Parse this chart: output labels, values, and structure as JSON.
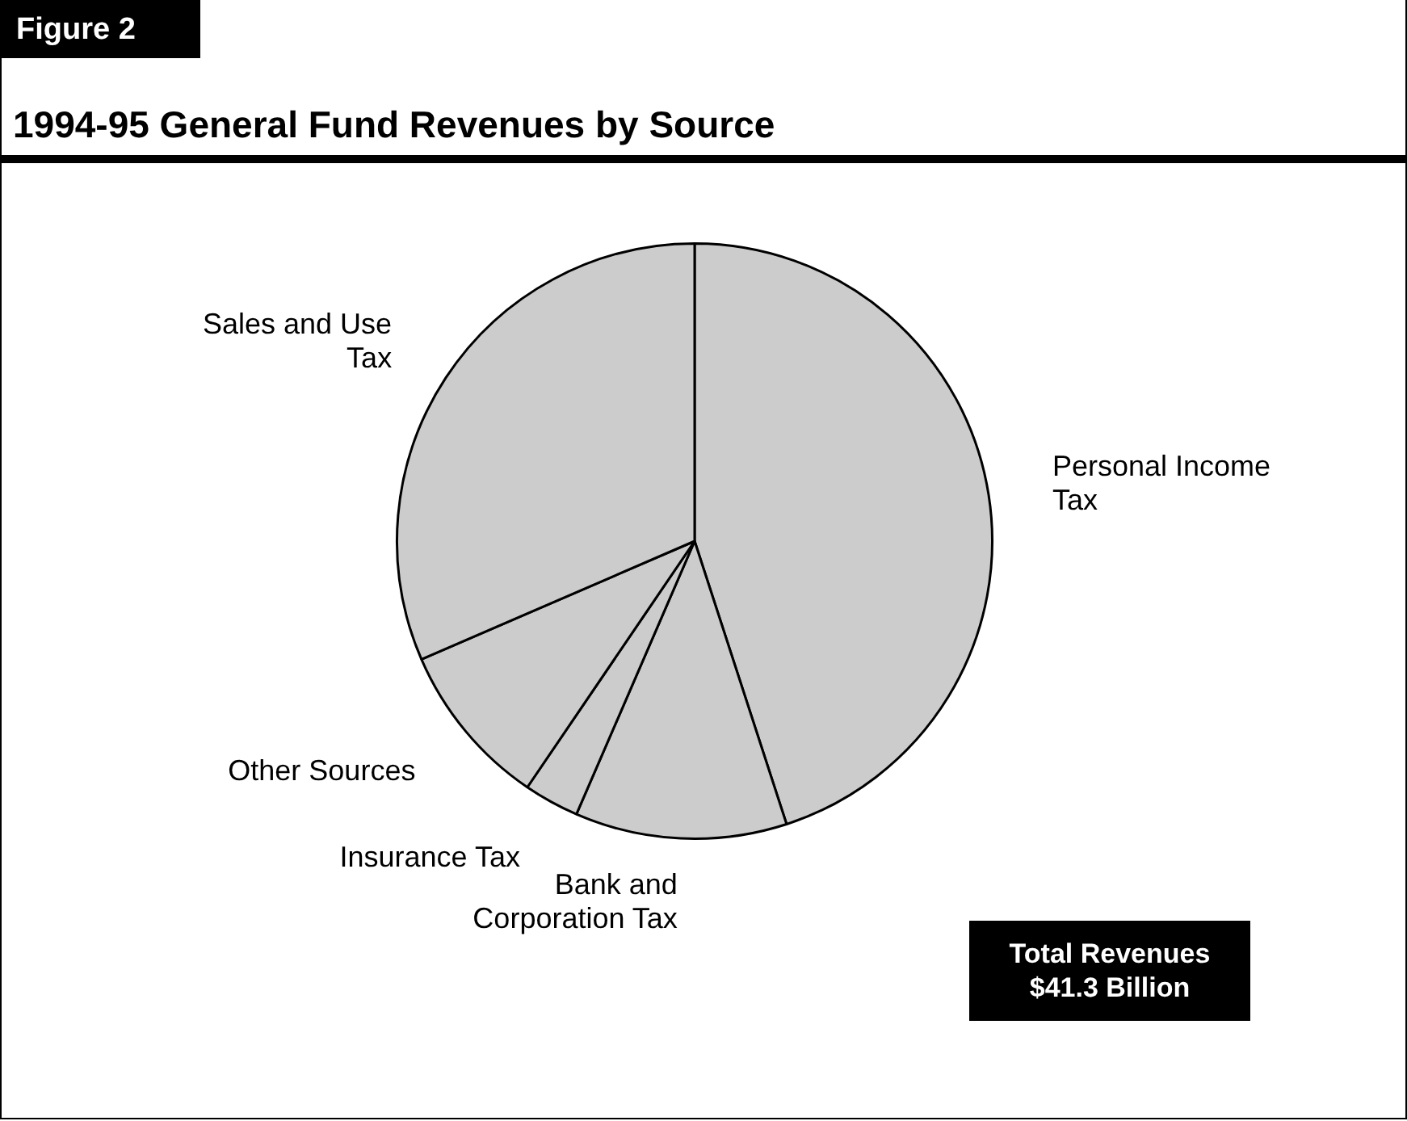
{
  "chart_data": {
    "type": "pie",
    "title": "1994-95 General Fund Revenues by Source",
    "subtitle": "Figure 2",
    "categories": [
      "Personal Income Tax",
      "Bank and Corporation Tax",
      "Insurance Tax",
      "Other Sources",
      "Sales and Use Tax"
    ],
    "values": [
      45,
      11.5,
      3,
      9,
      31.5
    ],
    "colors": [
      "#cccccc",
      "#cccccc",
      "#cccccc",
      "#cccccc",
      "#cccccc"
    ],
    "legend": false,
    "annotations": [
      "Total Revenues $41.3 Billion"
    ]
  }
}
